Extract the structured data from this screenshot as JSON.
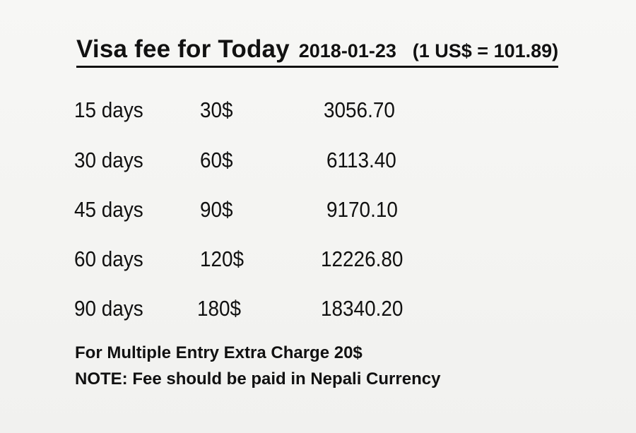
{
  "header": {
    "title": "Visa fee for Today",
    "date": "2018-01-23",
    "rate": "(1 US$  = 101.89)"
  },
  "fees": [
    {
      "days": "15 days",
      "usd": "30$",
      "npr": "3056.70"
    },
    {
      "days": "30 days",
      "usd": "60$",
      "npr": "6113.40"
    },
    {
      "days": "45 days",
      "usd": "90$",
      "npr": "9170.10"
    },
    {
      "days": "60 days",
      "usd": "120$",
      "npr": "12226.80"
    },
    {
      "days": "90 days",
      "usd": "180$",
      "npr": "18340.20"
    }
  ],
  "notes": {
    "multiple_entry": "For Multiple Entry Extra Charge 20$",
    "currency_note": "NOTE: Fee should be paid in Nepali Currency"
  }
}
